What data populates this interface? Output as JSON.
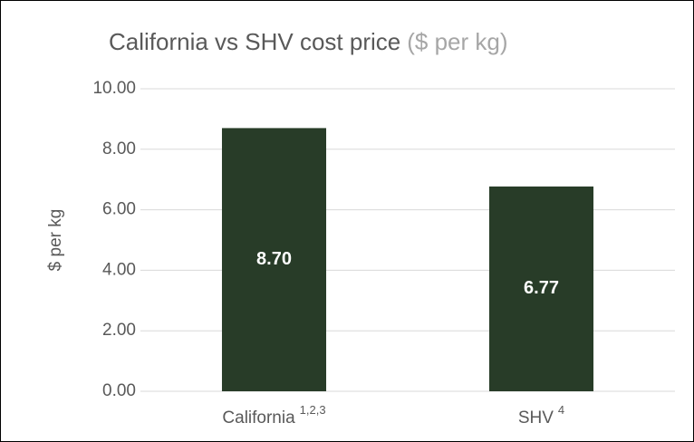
{
  "chart_data": {
    "type": "bar",
    "title": "California vs SHV cost price",
    "title_unit": "($ per kg)",
    "ylabel": "$ per kg",
    "categories": [
      "California",
      "SHV"
    ],
    "category_notes": [
      "1,2,3",
      "4"
    ],
    "values": [
      8.7,
      6.77
    ],
    "value_labels": [
      "8.70",
      "6.77"
    ],
    "color": "#283c28",
    "ylim": [
      0,
      10
    ],
    "yticks": [
      {
        "value": 0,
        "label": "0.00"
      },
      {
        "value": 2,
        "label": "2.00"
      },
      {
        "value": 4,
        "label": "4.00"
      },
      {
        "value": 6,
        "label": "6.00"
      },
      {
        "value": 8,
        "label": "8.00"
      },
      {
        "value": 10,
        "label": "10.00"
      }
    ],
    "grid": true
  }
}
